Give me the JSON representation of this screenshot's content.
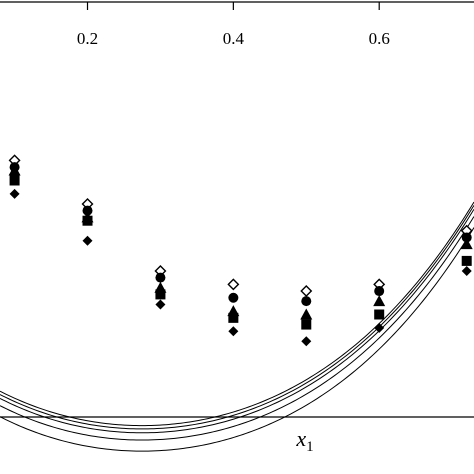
{
  "chart_data": {
    "type": "scatter",
    "title": "",
    "xlabel": "x",
    "xlabel_subscript": "1",
    "ylabel": "",
    "x_ticks": [
      "0.2",
      "0.4",
      "0.6"
    ],
    "x_tick_values": [
      0.2,
      0.4,
      0.6
    ],
    "xlim": [
      0.08,
      0.73
    ],
    "ylim": [
      0,
      1
    ],
    "y_axis_visible": false,
    "grid": false,
    "legend": "none",
    "marker_colors": {
      "open": "#ffffff",
      "filled": "#000000",
      "line": "#000000"
    },
    "series": [
      {
        "marker": "diamond-open",
        "x": [
          0.1,
          0.2,
          0.3,
          0.4,
          0.5,
          0.6,
          0.72
        ],
        "y": [
          0.76,
          0.63,
          0.43,
          0.39,
          0.37,
          0.39,
          0.55
        ],
        "curve_coeffs": [
          0.1834,
          -1.72,
          4.24,
          -3.98,
          3.51
        ]
      },
      {
        "marker": "circle",
        "x": [
          0.1,
          0.2,
          0.3,
          0.4,
          0.5,
          0.6,
          0.72
        ],
        "y": [
          0.74,
          0.61,
          0.41,
          0.35,
          0.34,
          0.37,
          0.53
        ],
        "curve_coeffs": [
          0.1735,
          -1.72,
          4.24,
          -3.98,
          3.51
        ]
      },
      {
        "marker": "triangle",
        "x": [
          0.1,
          0.2,
          0.3,
          0.4,
          0.5,
          0.6,
          0.72
        ],
        "y": [
          0.73,
          0.59,
          0.38,
          0.31,
          0.3,
          0.34,
          0.51
        ],
        "curve_coeffs": [
          0.1619,
          -1.72,
          4.24,
          -3.98,
          3.51
        ]
      },
      {
        "marker": "square",
        "x": [
          0.1,
          0.2,
          0.3,
          0.4,
          0.5,
          0.6,
          0.72
        ],
        "y": [
          0.7,
          0.58,
          0.36,
          0.29,
          0.27,
          0.3,
          0.46
        ],
        "curve_coeffs": [
          0.1403,
          -1.72,
          4.24,
          -3.98,
          3.51
        ]
      },
      {
        "marker": "diamond",
        "x": [
          0.1,
          0.2,
          0.3,
          0.4,
          0.5,
          0.6,
          0.72
        ],
        "y": [
          0.66,
          0.52,
          0.33,
          0.25,
          0.22,
          0.26,
          0.43
        ],
        "curve_coeffs": [
          0.1072,
          -1.72,
          4.24,
          -3.98,
          3.51
        ]
      }
    ]
  }
}
